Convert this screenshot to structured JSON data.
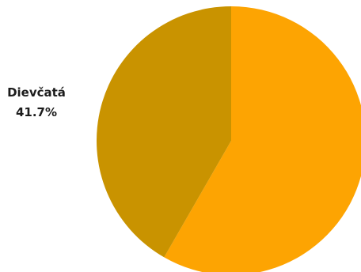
{
  "chart_data": {
    "type": "pie",
    "slices": [
      {
        "label": "",
        "value": 58.3,
        "value_label": "",
        "color": "#fda402"
      },
      {
        "label": "Dievčatá",
        "value": 41.7,
        "value_label": "41.7%",
        "color": "#c99300"
      }
    ],
    "start": "top",
    "direction": "clockwise"
  }
}
